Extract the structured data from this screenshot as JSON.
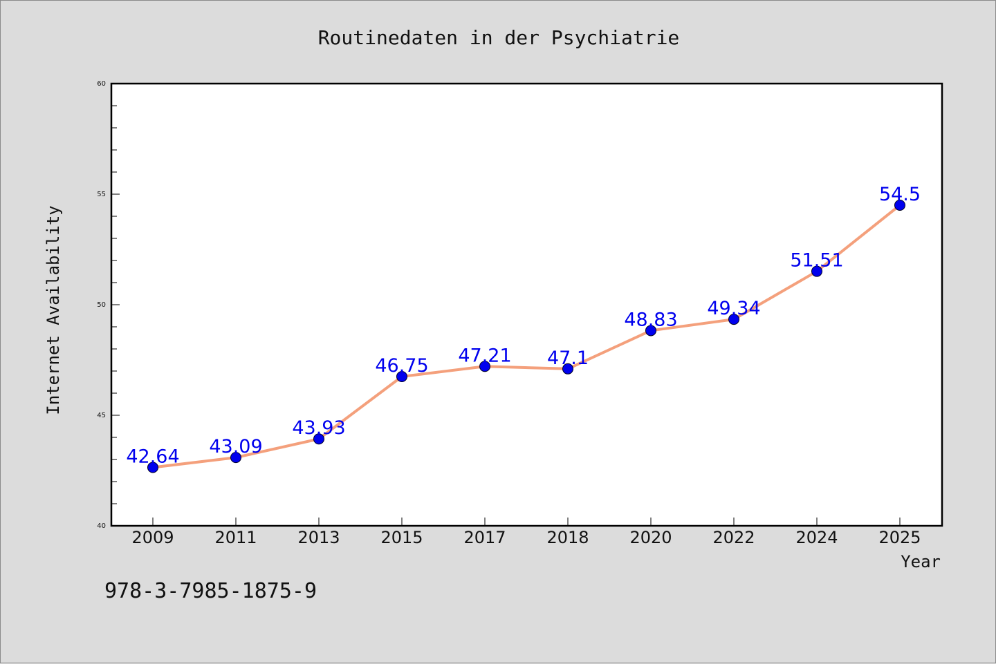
{
  "chart_data": {
    "type": "line",
    "title": "Routinedaten in der Psychiatrie",
    "xlabel": "Year",
    "ylabel": "Internet Availability",
    "categories": [
      "2009",
      "2011",
      "2013",
      "2015",
      "2017",
      "2018",
      "2020",
      "2022",
      "2024",
      "2025"
    ],
    "series": [
      {
        "values": [
          42.64,
          43.09,
          43.93,
          46.75,
          47.21,
          47.1,
          48.83,
          49.34,
          51.51,
          54.5
        ],
        "line_color": "#f4a07c",
        "marker_color": "#0000ee"
      }
    ],
    "data_labels": [
      "42.64",
      "43.09",
      "43.93",
      "46.75",
      "47.21",
      "47.1",
      "48.83",
      "49.34",
      "51.51",
      "54.5"
    ],
    "label_color": "#0000ee",
    "ylim": [
      40,
      60
    ],
    "yticks": [
      "40",
      "45",
      "50",
      "55",
      "60"
    ],
    "grid": false
  },
  "footer_text": "978-3-7985-1875-9"
}
